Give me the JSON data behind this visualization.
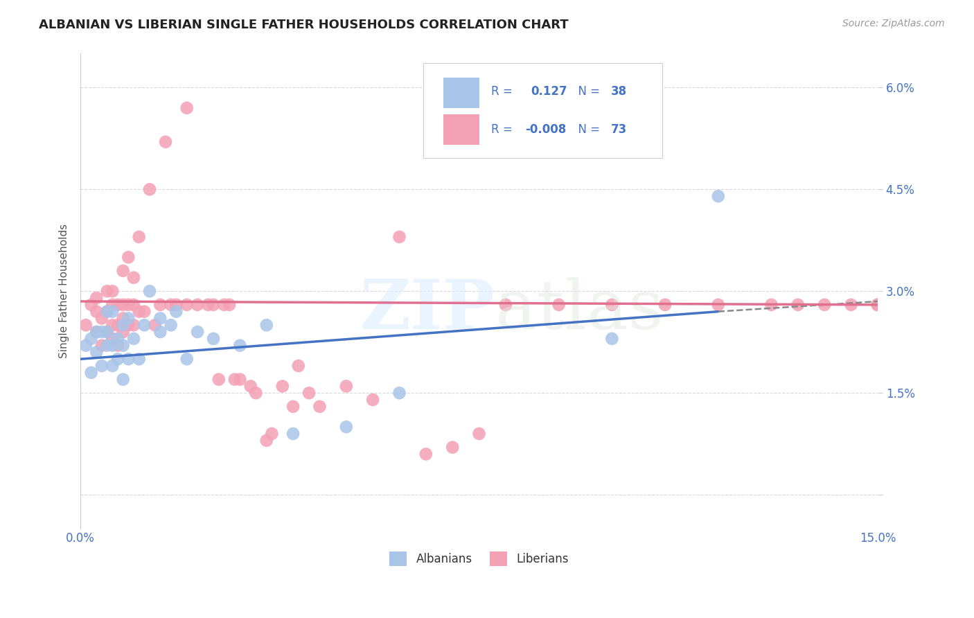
{
  "title": "ALBANIAN VS LIBERIAN SINGLE FATHER HOUSEHOLDS CORRELATION CHART",
  "source": "Source: ZipAtlas.com",
  "ylabel": "Single Father Households",
  "xlim": [
    0.0,
    0.15
  ],
  "ylim": [
    -0.005,
    0.065
  ],
  "legend_r_albanian": "0.127",
  "legend_n_albanian": "38",
  "legend_r_liberian": "-0.008",
  "legend_n_liberian": "73",
  "albanian_color": "#a8c4e8",
  "liberian_color": "#f4a0b5",
  "trendline_albanian_color": "#4472c4",
  "trendline_liberian_color": "#e07090",
  "albanian_x": [
    0.001,
    0.002,
    0.002,
    0.003,
    0.003,
    0.004,
    0.004,
    0.005,
    0.005,
    0.005,
    0.006,
    0.006,
    0.006,
    0.007,
    0.007,
    0.008,
    0.008,
    0.008,
    0.009,
    0.009,
    0.01,
    0.011,
    0.012,
    0.013,
    0.015,
    0.015,
    0.017,
    0.018,
    0.02,
    0.022,
    0.025,
    0.03,
    0.035,
    0.04,
    0.05,
    0.06,
    0.1,
    0.12
  ],
  "albanian_y": [
    0.022,
    0.018,
    0.023,
    0.021,
    0.024,
    0.019,
    0.024,
    0.022,
    0.024,
    0.027,
    0.019,
    0.022,
    0.027,
    0.02,
    0.023,
    0.017,
    0.022,
    0.025,
    0.02,
    0.026,
    0.023,
    0.02,
    0.025,
    0.03,
    0.026,
    0.024,
    0.025,
    0.027,
    0.02,
    0.024,
    0.023,
    0.022,
    0.025,
    0.009,
    0.01,
    0.015,
    0.023,
    0.044
  ],
  "liberian_x": [
    0.001,
    0.002,
    0.003,
    0.003,
    0.003,
    0.004,
    0.004,
    0.005,
    0.005,
    0.005,
    0.006,
    0.006,
    0.006,
    0.006,
    0.007,
    0.007,
    0.007,
    0.008,
    0.008,
    0.008,
    0.008,
    0.009,
    0.009,
    0.009,
    0.01,
    0.01,
    0.01,
    0.011,
    0.011,
    0.012,
    0.013,
    0.014,
    0.015,
    0.016,
    0.017,
    0.018,
    0.02,
    0.02,
    0.022,
    0.024,
    0.025,
    0.026,
    0.027,
    0.028,
    0.029,
    0.03,
    0.032,
    0.033,
    0.035,
    0.036,
    0.038,
    0.04,
    0.041,
    0.043,
    0.045,
    0.05,
    0.055,
    0.06,
    0.065,
    0.07,
    0.075,
    0.08,
    0.09,
    0.1,
    0.11,
    0.12,
    0.13,
    0.135,
    0.14,
    0.145,
    0.15,
    0.15,
    0.15
  ],
  "liberian_y": [
    0.025,
    0.028,
    0.024,
    0.027,
    0.029,
    0.022,
    0.026,
    0.024,
    0.027,
    0.03,
    0.023,
    0.025,
    0.028,
    0.03,
    0.022,
    0.025,
    0.028,
    0.024,
    0.026,
    0.028,
    0.033,
    0.025,
    0.028,
    0.035,
    0.025,
    0.028,
    0.032,
    0.027,
    0.038,
    0.027,
    0.045,
    0.025,
    0.028,
    0.052,
    0.028,
    0.028,
    0.028,
    0.057,
    0.028,
    0.028,
    0.028,
    0.017,
    0.028,
    0.028,
    0.017,
    0.017,
    0.016,
    0.015,
    0.008,
    0.009,
    0.016,
    0.013,
    0.019,
    0.015,
    0.013,
    0.016,
    0.014,
    0.038,
    0.006,
    0.007,
    0.009,
    0.028,
    0.028,
    0.028,
    0.028,
    0.028,
    0.028,
    0.028,
    0.028,
    0.028,
    0.028,
    0.028,
    0.028
  ],
  "trendline_alb_x0": 0.0,
  "trendline_alb_y0": 0.02,
  "trendline_alb_x1": 0.12,
  "trendline_alb_y1": 0.027,
  "trendline_alb_dash_x0": 0.12,
  "trendline_alb_dash_y0": 0.027,
  "trendline_alb_dash_x1": 0.15,
  "trendline_alb_dash_y1": 0.0285,
  "trendline_lib_x0": 0.0,
  "trendline_lib_y0": 0.0285,
  "trendline_lib_x1": 0.15,
  "trendline_lib_y1": 0.028,
  "ytick_vals": [
    0.0,
    0.015,
    0.03,
    0.045,
    0.06
  ],
  "ytick_labels": [
    "",
    "1.5%",
    "3.0%",
    "4.5%",
    "6.0%"
  ],
  "xtick_vals": [
    0.0,
    0.025,
    0.05,
    0.075,
    0.1,
    0.125,
    0.15
  ],
  "xtick_labels": [
    "0.0%",
    "",
    "",
    "",
    "",
    "",
    "15.0%"
  ],
  "legend_text_color": "#4472c4",
  "axis_label_color": "#4472c4",
  "grid_color": "#d8d8d8"
}
